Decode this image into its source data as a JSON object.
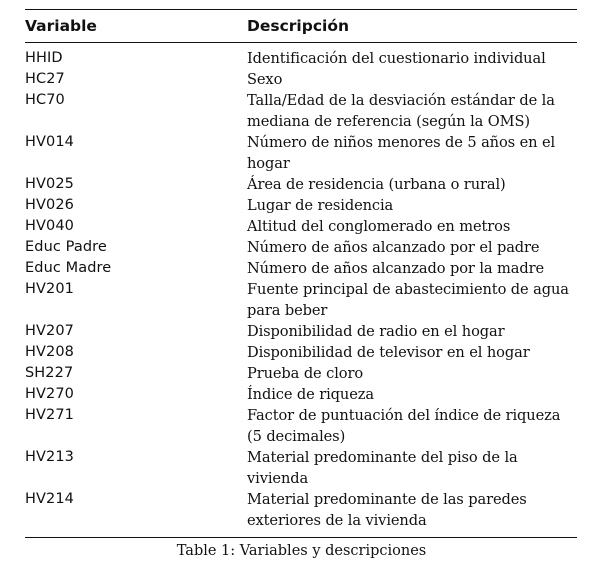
{
  "table": {
    "headers": {
      "variable": "Variable",
      "description": "Descripción"
    },
    "rows": [
      {
        "variable": "HHID",
        "description": "Identificación del cuestionario individual"
      },
      {
        "variable": "HC27",
        "description": "Sexo"
      },
      {
        "variable": "HC70",
        "description": "Talla/Edad de la desviación estándar de la mediana de referencia (según la OMS)"
      },
      {
        "variable": "HV014",
        "description": "Número de niños menores de 5 años en el hogar"
      },
      {
        "variable": "HV025",
        "description": "Área de residencia (urbana o rural)"
      },
      {
        "variable": "HV026",
        "description": "Lugar de residencia"
      },
      {
        "variable": "HV040",
        "description": "Altitud del conglomerado en metros"
      },
      {
        "variable": "Educ Padre",
        "description": "Número de años alcanzado por el padre"
      },
      {
        "variable": "Educ Madre",
        "description": "Número de años alcanzado por la madre"
      },
      {
        "variable": "HV201",
        "description": "Fuente principal de abastecimiento de agua para beber"
      },
      {
        "variable": "HV207",
        "description": "Disponibilidad de radio en el hogar"
      },
      {
        "variable": "HV208",
        "description": "Disponibilidad de televisor en el hogar"
      },
      {
        "variable": "SH227",
        "description": "Prueba de cloro"
      },
      {
        "variable": "HV270",
        "description": "Índice de riqueza"
      },
      {
        "variable": "HV271",
        "description": "Factor de puntuación del índice de riqueza (5 decimales)"
      },
      {
        "variable": "HV213",
        "description": "Material predominante del piso de la vivienda"
      },
      {
        "variable": "HV214",
        "description": "Material predominante de las paredes exteriores de la vivienda"
      }
    ]
  },
  "caption": "Table 1: Variables y descripciones"
}
